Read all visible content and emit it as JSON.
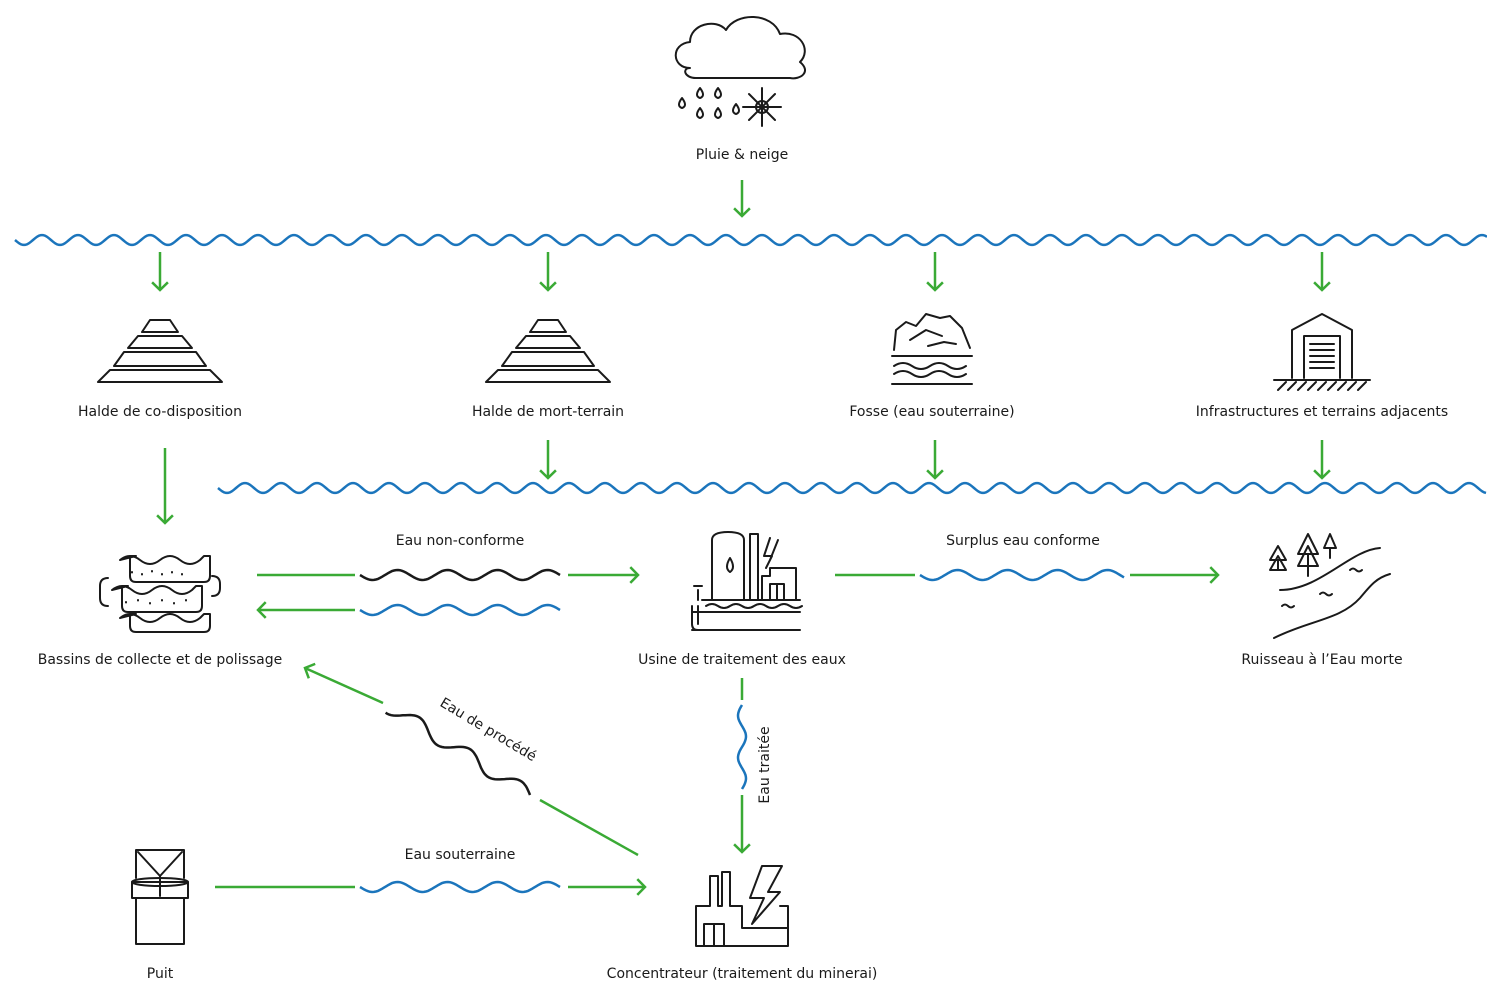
{
  "nodes": [
    {
      "label": "Pluie & neige"
    },
    {
      "label": "Halde de co-disposition"
    },
    {
      "label": "Halde de mort-terrain"
    },
    {
      "label": "Fosse (eau souterraine)"
    },
    {
      "label": "Infrastructures et terrains adjacents"
    },
    {
      "label": "Bassins de collecte et de polissage"
    },
    {
      "label": "Usine de traitement des eaux"
    },
    {
      "label": "Ruisseau à l’Eau morte"
    },
    {
      "label": "Puit"
    },
    {
      "label": "Concentrateur (traitement du minerai)"
    }
  ],
  "edges": [
    {
      "label": "Eau non-conforme"
    },
    {
      "label": "Surplus eau conforme"
    },
    {
      "label": "Eau de procédé"
    },
    {
      "label": "Eau traitée"
    },
    {
      "label": "Eau souterraine"
    }
  ]
}
